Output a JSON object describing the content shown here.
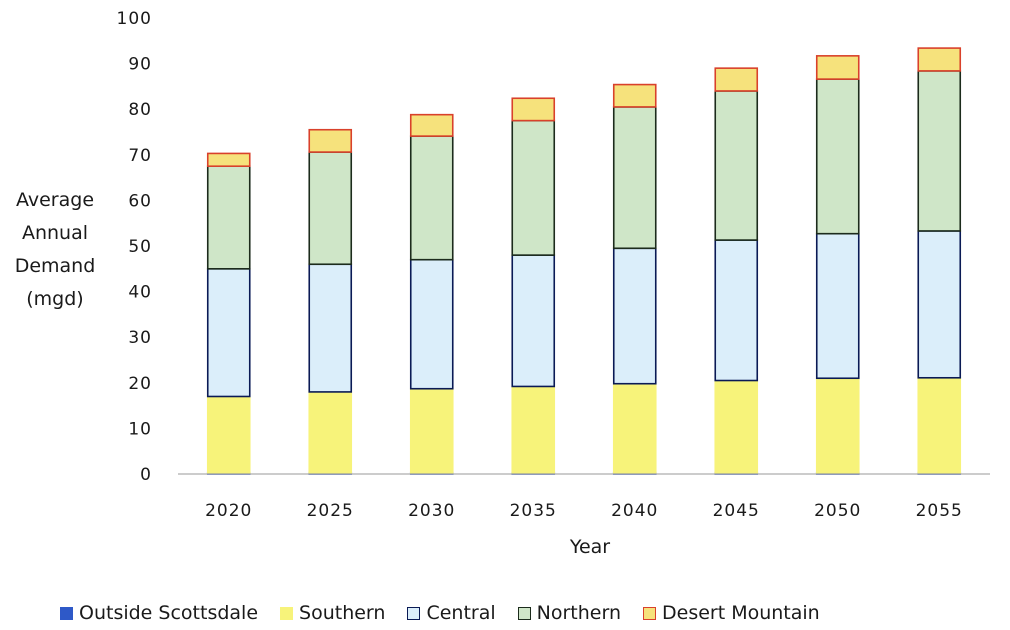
{
  "chart_data": {
    "type": "bar",
    "stacked": true,
    "xlabel": "Year",
    "ylabel_lines": [
      "Average",
      "Annual",
      "Demand",
      "(mgd)"
    ],
    "ylim": [
      0,
      100
    ],
    "yticks": [
      "0",
      "10",
      "20",
      "30",
      "40",
      "50",
      "60",
      "70",
      "80",
      "90",
      "100"
    ],
    "categories": [
      "2020",
      "2025",
      "2030",
      "2035",
      "2040",
      "2045",
      "2050",
      "2055"
    ],
    "grid": false,
    "legend_position": "bottom",
    "series": [
      {
        "name": "Outside Scottsdale",
        "fill": "#2e59c8",
        "stroke": "#2e59c8",
        "values": [
          0.3,
          0.3,
          0.3,
          0.3,
          0.3,
          0.3,
          0.3,
          0.3
        ]
      },
      {
        "name": "Southern",
        "fill": "#f7f37a",
        "stroke": "#f7f37a",
        "values": [
          16.7,
          17.7,
          18.4,
          18.9,
          19.5,
          20.2,
          20.7,
          20.8
        ]
      },
      {
        "name": "Central",
        "fill": "#dbeefa",
        "stroke": "#0a1a55",
        "values": [
          28.0,
          28.0,
          28.3,
          28.8,
          29.7,
          30.8,
          31.7,
          32.2
        ]
      },
      {
        "name": "Northern",
        "fill": "#cfe6c8",
        "stroke": "#1c2b1c",
        "values": [
          22.5,
          24.6,
          27.1,
          29.5,
          31.0,
          32.7,
          33.9,
          35.1
        ]
      },
      {
        "name": "Desert Mountain",
        "fill": "#f6e27c",
        "stroke": "#d9412b",
        "values": [
          2.8,
          4.9,
          4.7,
          4.9,
          4.9,
          5.0,
          5.1,
          5.0
        ]
      }
    ]
  }
}
